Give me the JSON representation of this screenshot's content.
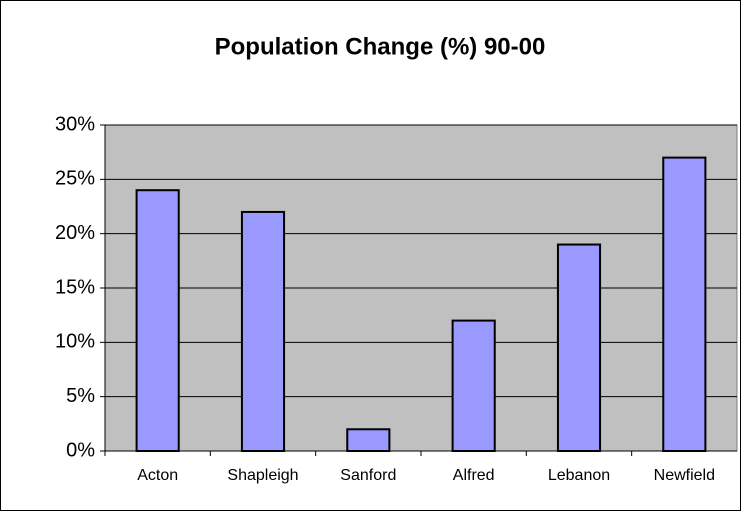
{
  "chart_data": {
    "type": "bar",
    "title": "Population Change (%) 90-00",
    "categories": [
      "Acton",
      "Shapleigh",
      "Sanford",
      "Alfred",
      "Lebanon",
      "Newfield"
    ],
    "values": [
      24,
      22,
      2,
      12,
      19,
      27
    ],
    "color": "#9999ff",
    "ylim": [
      0,
      30
    ],
    "yticks": [
      {
        "value": 0,
        "label": "0%"
      },
      {
        "value": 5,
        "label": "5%"
      },
      {
        "value": 10,
        "label": "10%"
      },
      {
        "value": 15,
        "label": "15%"
      },
      {
        "value": 20,
        "label": "20%"
      },
      {
        "value": 25,
        "label": "25%"
      },
      {
        "value": 30,
        "label": "30%"
      }
    ],
    "grid": true
  }
}
